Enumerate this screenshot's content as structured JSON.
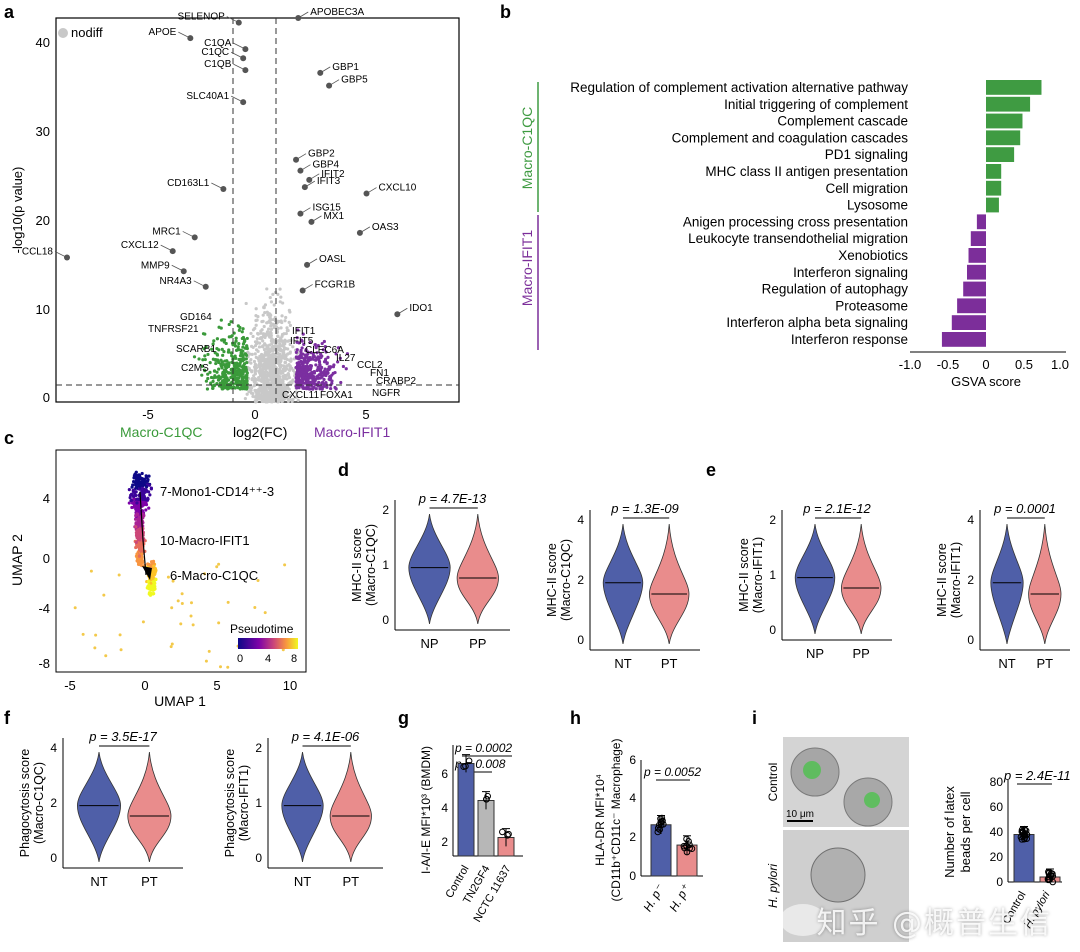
{
  "panels": {
    "a": "a",
    "b": "b",
    "c": "c",
    "d": "d",
    "e": "e",
    "f": "f",
    "g": "g",
    "h": "h",
    "i": "i"
  },
  "volcano": {
    "legend_nodiff": "nodiff",
    "y_ticks": [
      "0",
      "10",
      "20",
      "30",
      "40"
    ],
    "x_ticks": [
      "-5",
      "0",
      "5"
    ],
    "ylabel": "-log10(p value)",
    "xlabel_left": "Macro-C1QC",
    "xlabel_mid": "log2(FC)",
    "xlabel_right": "Macro-IFIT1",
    "genes_left": [
      "SELENOP",
      "APOE",
      "C1QA",
      "C1QC",
      "C1QB",
      "SLC40A1",
      "CD163L1",
      "MRC1",
      "CCL18",
      "CXCL12",
      "MMP9",
      "NR4A3",
      "GD164",
      "TNFRSF21",
      "SCARB1",
      "C2MS"
    ],
    "genes_right": [
      "APOBEC3A",
      "GBP1",
      "GBP5",
      "GBP2",
      "GBP4",
      "IFIT2",
      "IFIT3",
      "CXCL10",
      "ISG15",
      "MX1",
      "OAS3",
      "OASL",
      "FCGR1B",
      "IDO1",
      "IFIT1",
      "IFIT5",
      "CLEC6A",
      "IL27",
      "CCL2",
      "FN1",
      "CRABP2",
      "NGFR",
      "FOXA1",
      "CXCL11"
    ],
    "colors": {
      "left": "#3a9a3a",
      "right": "#7b2fa0",
      "nodiff": "#c8c8c8"
    }
  },
  "gsva": {
    "group_top": "Macro-C1QC",
    "group_bottom": "Macro-IFIT1",
    "xlabel": "GSVA score",
    "x_ticks": [
      "-1.0",
      "-0.5",
      "0",
      "0.5",
      "1.0"
    ],
    "colors": {
      "top": "#3f9b42",
      "bottom": "#7c2e9a"
    }
  },
  "umap": {
    "xlabel": "UMAP 1",
    "ylabel": "UMAP 2",
    "x_ticks": [
      "-5",
      "0",
      "5",
      "10"
    ],
    "y_ticks": [
      "4",
      "0",
      "-4",
      "-8"
    ],
    "labels": [
      "7-Mono1-CD14⁺⁺-3",
      "10-Macro-IFIT1",
      "6-Macro-C1QC"
    ],
    "legend_title": "Pseudotime",
    "legend_ticks": [
      "0",
      "4",
      "8"
    ]
  },
  "violins": {
    "d1": {
      "ylabel1": "MHC-II score",
      "ylabel2": "(Macro-C1QC)",
      "p": "p = 4.7E-13",
      "groups": [
        "NP",
        "PP"
      ],
      "ticks": [
        "0",
        "1",
        "2"
      ]
    },
    "d2": {
      "ylabel1": "MHC-II score",
      "ylabel2": "(Macro-C1QC)",
      "p": "p = 1.3E-09",
      "groups": [
        "NT",
        "PT"
      ],
      "ticks": [
        "0",
        "2",
        "4"
      ]
    },
    "e1": {
      "ylabel1": "MHC-II score",
      "ylabel2": "(Macro-IFIT1)",
      "p": "p = 2.1E-12",
      "groups": [
        "NP",
        "PP"
      ],
      "ticks": [
        "0",
        "1",
        "2"
      ]
    },
    "e2": {
      "ylabel1": "MHC-II score",
      "ylabel2": "(Macro-IFIT1)",
      "p": "p = 0.0001",
      "groups": [
        "NT",
        "PT"
      ],
      "ticks": [
        "0",
        "2",
        "4"
      ]
    },
    "f1": {
      "ylabel1": "Phagocytosis score",
      "ylabel2": "(Macro-C1QC)",
      "p": "p = 3.5E-17",
      "groups": [
        "NT",
        "PT"
      ],
      "ticks": [
        "0",
        "2",
        "4"
      ]
    },
    "f2": {
      "ylabel1": "Phagocytosis score",
      "ylabel2": "(Macro-IFIT1)",
      "p": "p = 4.1E-06",
      "groups": [
        "NT",
        "PT"
      ],
      "ticks": [
        "0",
        "1",
        "2"
      ]
    },
    "colors": {
      "blue": "#4f5fa8",
      "pink": "#e98c8c"
    }
  },
  "bar_g": {
    "ylabel": "I-A/I-E MFI*10³ (BMDM)",
    "p1": "p = 0.0002",
    "p2": "p = 0.008",
    "categories": [
      "Control",
      "TN2GF4",
      "NCTC 11637"
    ],
    "ticks": [
      "2",
      "4",
      "6"
    ]
  },
  "bar_h": {
    "ylabel1": "HLA-DR MFI*10⁴",
    "ylabel2": "(CD11b⁺CD11c⁻ Macrophage)",
    "p": "p = 0.0052",
    "categories": [
      "H. p⁻",
      "H. p⁺"
    ],
    "ticks": [
      "0",
      "2",
      "4",
      "6"
    ]
  },
  "panel_i": {
    "label_control": "Control",
    "label_hp": "H. pylori",
    "scale": "10 μm",
    "ylabel1": "Number of latex",
    "ylabel2": "beads per cell",
    "p": "p = 2.4E-11",
    "ticks": [
      "0",
      "20",
      "40",
      "60",
      "80"
    ],
    "categories": [
      "Control",
      "H. pylori"
    ]
  },
  "watermark": "知乎 @概普生信",
  "chart_data": [
    {
      "type": "scatter",
      "id": "a",
      "xlabel": "log2(FC)",
      "ylabel": "-log10(p value)",
      "xlim": [
        -9.8,
        8.5
      ],
      "ylim": [
        0,
        42
      ],
      "hlines": [
        1.3
      ],
      "vlines": [
        -1,
        1
      ],
      "labeled_points": [
        {
          "gene": "SELENOP",
          "x": -1.5,
          "y": 41.5
        },
        {
          "gene": "APOE",
          "x": -3.7,
          "y": 39.8
        },
        {
          "gene": "C1QA",
          "x": -1.2,
          "y": 38.6
        },
        {
          "gene": "C1QC",
          "x": -1.3,
          "y": 37.6
        },
        {
          "gene": "C1QB",
          "x": -1.2,
          "y": 36.3
        },
        {
          "gene": "SLC40A1",
          "x": -1.3,
          "y": 32.8
        },
        {
          "gene": "CD163L1",
          "x": -2.2,
          "y": 23.3
        },
        {
          "gene": "MRC1",
          "x": -3.5,
          "y": 18.0
        },
        {
          "gene": "CCL18",
          "x": -9.3,
          "y": 15.8
        },
        {
          "gene": "CXCL12",
          "x": -4.5,
          "y": 16.5
        },
        {
          "gene": "MMP9",
          "x": -4.0,
          "y": 14.3
        },
        {
          "gene": "NR4A3",
          "x": -3.0,
          "y": 12.6
        },
        {
          "gene": "APOBEC3A",
          "x": 1.2,
          "y": 42.0
        },
        {
          "gene": "GBP1",
          "x": 2.2,
          "y": 36.0
        },
        {
          "gene": "GBP5",
          "x": 2.6,
          "y": 34.6
        },
        {
          "gene": "GBP2",
          "x": 1.1,
          "y": 26.5
        },
        {
          "gene": "GBP4",
          "x": 1.3,
          "y": 25.3
        },
        {
          "gene": "IFIT2",
          "x": 1.7,
          "y": 24.3
        },
        {
          "gene": "IFIT3",
          "x": 1.5,
          "y": 23.5
        },
        {
          "gene": "CXCL10",
          "x": 4.3,
          "y": 22.8
        },
        {
          "gene": "ISG15",
          "x": 1.3,
          "y": 20.6
        },
        {
          "gene": "MX1",
          "x": 1.8,
          "y": 19.7
        },
        {
          "gene": "OAS3",
          "x": 4.0,
          "y": 18.5
        },
        {
          "gene": "OASL",
          "x": 1.6,
          "y": 15.0
        },
        {
          "gene": "FCGR1B",
          "x": 1.4,
          "y": 12.2
        },
        {
          "gene": "IDO1",
          "x": 5.7,
          "y": 9.6
        }
      ]
    },
    {
      "type": "bar",
      "id": "b",
      "orientation": "horizontal",
      "xlabel": "GSVA score",
      "xlim": [
        -1.0,
        1.0
      ],
      "categories": [
        "Regulation of complement activation alternative pathway",
        "Initial triggering of complement",
        "Complement cascade",
        "Complement and coagulation cascades",
        "PD1 signaling",
        "MHC class II antigen presentation",
        "Cell migration",
        "Lysosome",
        "Anigen processing cross presentation",
        "Leukocyte transendothelial migration",
        "Xenobiotics",
        "Interferon signaling",
        "Regulation of autophagy",
        "Proteasome",
        "Interferon alpha beta signaling",
        "Interferon response"
      ],
      "values": [
        0.73,
        0.58,
        0.48,
        0.45,
        0.37,
        0.2,
        0.2,
        0.17,
        -0.12,
        -0.2,
        -0.23,
        -0.25,
        -0.3,
        -0.38,
        -0.45,
        -0.58
      ]
    },
    {
      "type": "bar",
      "id": "g",
      "ylabel": "I-A/I-E MFI*10³ (BMDM)",
      "categories": [
        "Control",
        "TN2GF4",
        "NCTC 11637"
      ],
      "values": [
        6.5,
        4.7,
        2.9
      ],
      "ylim": [
        2,
        7.4
      ]
    },
    {
      "type": "bar",
      "id": "h",
      "ylabel": "HLA-DR MFI*10⁴ (CD11b⁺CD11c⁻ Macrophage)",
      "categories": [
        "H. p⁻",
        "H. p⁺"
      ],
      "values": [
        2.65,
        1.6
      ],
      "ylim": [
        0,
        6
      ]
    },
    {
      "type": "bar",
      "id": "i",
      "ylabel": "Number of latex beads per cell",
      "categories": [
        "Control",
        "H. pylori"
      ],
      "values": [
        38,
        4
      ],
      "ylim": [
        0,
        80
      ]
    }
  ]
}
